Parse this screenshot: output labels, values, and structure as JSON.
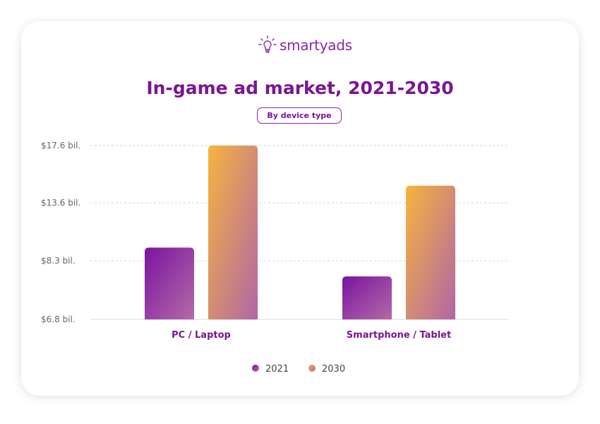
{
  "logo": {
    "text": "smartyads"
  },
  "chart_data": {
    "type": "bar",
    "title": "In-game ad market, 2021-2030",
    "subtitle": "By device type",
    "categories": [
      "PC / Laptop",
      "Smartphone / Tablet"
    ],
    "series": [
      {
        "name": "2021",
        "values": [
          9.5,
          7.9
        ],
        "color": "#8a2aa6"
      },
      {
        "name": "2030",
        "values": [
          17.6,
          14.8
        ],
        "color": "#f5b041"
      }
    ],
    "y_ticks": [
      6.8,
      8.3,
      13.6,
      17.6
    ],
    "y_tick_labels": [
      "$6.8 bil.",
      "$8.3 bil.",
      "$13.6 bil.",
      "$17.6 bil."
    ],
    "ylim": [
      6.8,
      17.6
    ],
    "grid": true,
    "legend_position": "bottom"
  }
}
